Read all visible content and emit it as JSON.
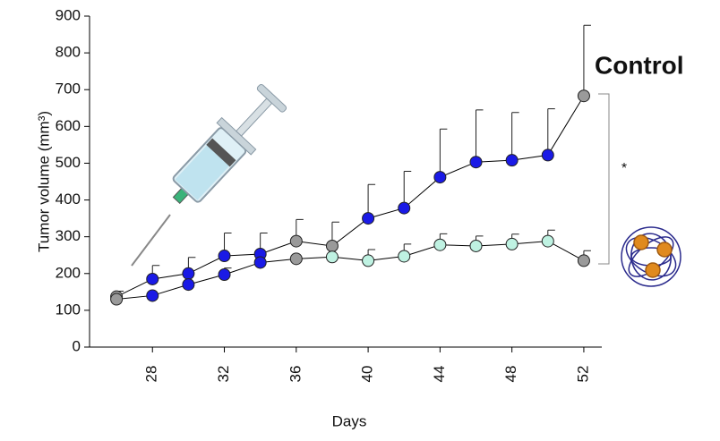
{
  "chart_data": {
    "type": "line",
    "x_label": "Days",
    "y_label": "Tumor volume  (mm³)",
    "annotations": [
      "Control",
      "*"
    ],
    "x": [
      26,
      28,
      30,
      32,
      34,
      36,
      38,
      40,
      42,
      44,
      46,
      48,
      50,
      52
    ],
    "series": [
      {
        "color": "#1a1ae6",
        "values": [
          137,
          185,
          200,
          248,
          253,
          288,
          275,
          350,
          378,
          462,
          503,
          508,
          522,
          683
        ],
        "errors": [
          15,
          37,
          44,
          62,
          57,
          59,
          65,
          92,
          100,
          131,
          142,
          130,
          126,
          192
        ],
        "marker_colors": [
          "#9a9a9a",
          "#1a1ae6",
          "#1a1ae6",
          "#1a1ae6",
          "#1a1ae6",
          "#9a9a9a",
          "#9a9a9a",
          "#1a1ae6",
          "#1a1ae6",
          "#1a1ae6",
          "#1a1ae6",
          "#1a1ae6",
          "#1a1ae6",
          "#9a9a9a"
        ]
      },
      {
        "color": "#1a1ae6",
        "values": [
          130,
          140,
          170,
          197,
          230,
          240,
          245,
          235,
          247,
          278,
          275,
          280,
          288,
          235
        ],
        "errors": [
          null,
          null,
          null,
          18,
          null,
          null,
          null,
          30,
          33,
          30,
          27,
          27,
          30,
          27
        ],
        "marker_colors": [
          "#9a9a9a",
          "#1a1ae6",
          "#1a1ae6",
          "#1a1ae6",
          "#1a1ae6",
          "#9a9a9a",
          "#bff2e2",
          "#bff2e2",
          "#bff2e2",
          "#bff2e2",
          "#bff2e2",
          "#bff2e2",
          "#bff2e2",
          "#9a9a9a"
        ]
      }
    ],
    "xlim": [
      24.5,
      53
    ],
    "xticks": [
      28,
      32,
      36,
      40,
      44,
      48,
      52
    ],
    "ylim": [
      0,
      900
    ],
    "yticks": [
      0,
      100,
      200,
      300,
      400,
      500,
      600,
      700,
      800,
      900
    ]
  }
}
